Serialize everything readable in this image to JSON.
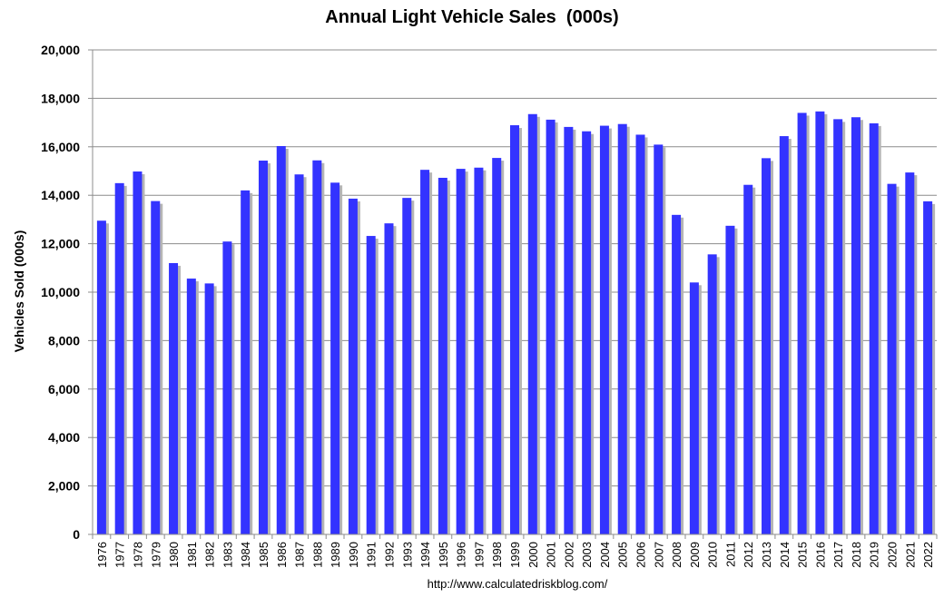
{
  "chart_data": {
    "type": "bar",
    "title": "Annual Light Vehicle Sales  (000s)",
    "xlabel": "",
    "ylabel": "Vehicles Sold (000s)",
    "source": "http://www.calculatedriskblog.com/",
    "ylim": [
      0,
      20000
    ],
    "yticks": [
      "0",
      "2,000",
      "4,000",
      "6,000",
      "8,000",
      "10,000",
      "12,000",
      "14,000",
      "16,000",
      "18,000",
      "20,000"
    ],
    "grid": true,
    "bar_color": "#3333ff",
    "categories": [
      "1976",
      "1977",
      "1978",
      "1979",
      "1980",
      "1981",
      "1982",
      "1983",
      "1984",
      "1985",
      "1986",
      "1987",
      "1988",
      "1989",
      "1990",
      "1991",
      "1992",
      "1993",
      "1994",
      "1995",
      "1996",
      "1997",
      "1998",
      "1999",
      "2000",
      "2001",
      "2002",
      "2003",
      "2004",
      "2005",
      "2006",
      "2007",
      "2008",
      "2009",
      "2010",
      "2011",
      "2012",
      "2013",
      "2014",
      "2015",
      "2016",
      "2017",
      "2018",
      "2019",
      "2020",
      "2021",
      "2022"
    ],
    "values": [
      12950,
      14500,
      14980,
      13760,
      11200,
      10560,
      10360,
      12090,
      14200,
      15430,
      16030,
      14860,
      15440,
      14520,
      13860,
      12320,
      12840,
      13890,
      15050,
      14720,
      15090,
      15140,
      15540,
      16890,
      17350,
      17120,
      16820,
      16640,
      16870,
      16940,
      16500,
      16090,
      13190,
      10400,
      11560,
      12740,
      14430,
      15530,
      16440,
      17400,
      17460,
      17140,
      17220,
      16970,
      14470,
      14940,
      13750
    ]
  }
}
